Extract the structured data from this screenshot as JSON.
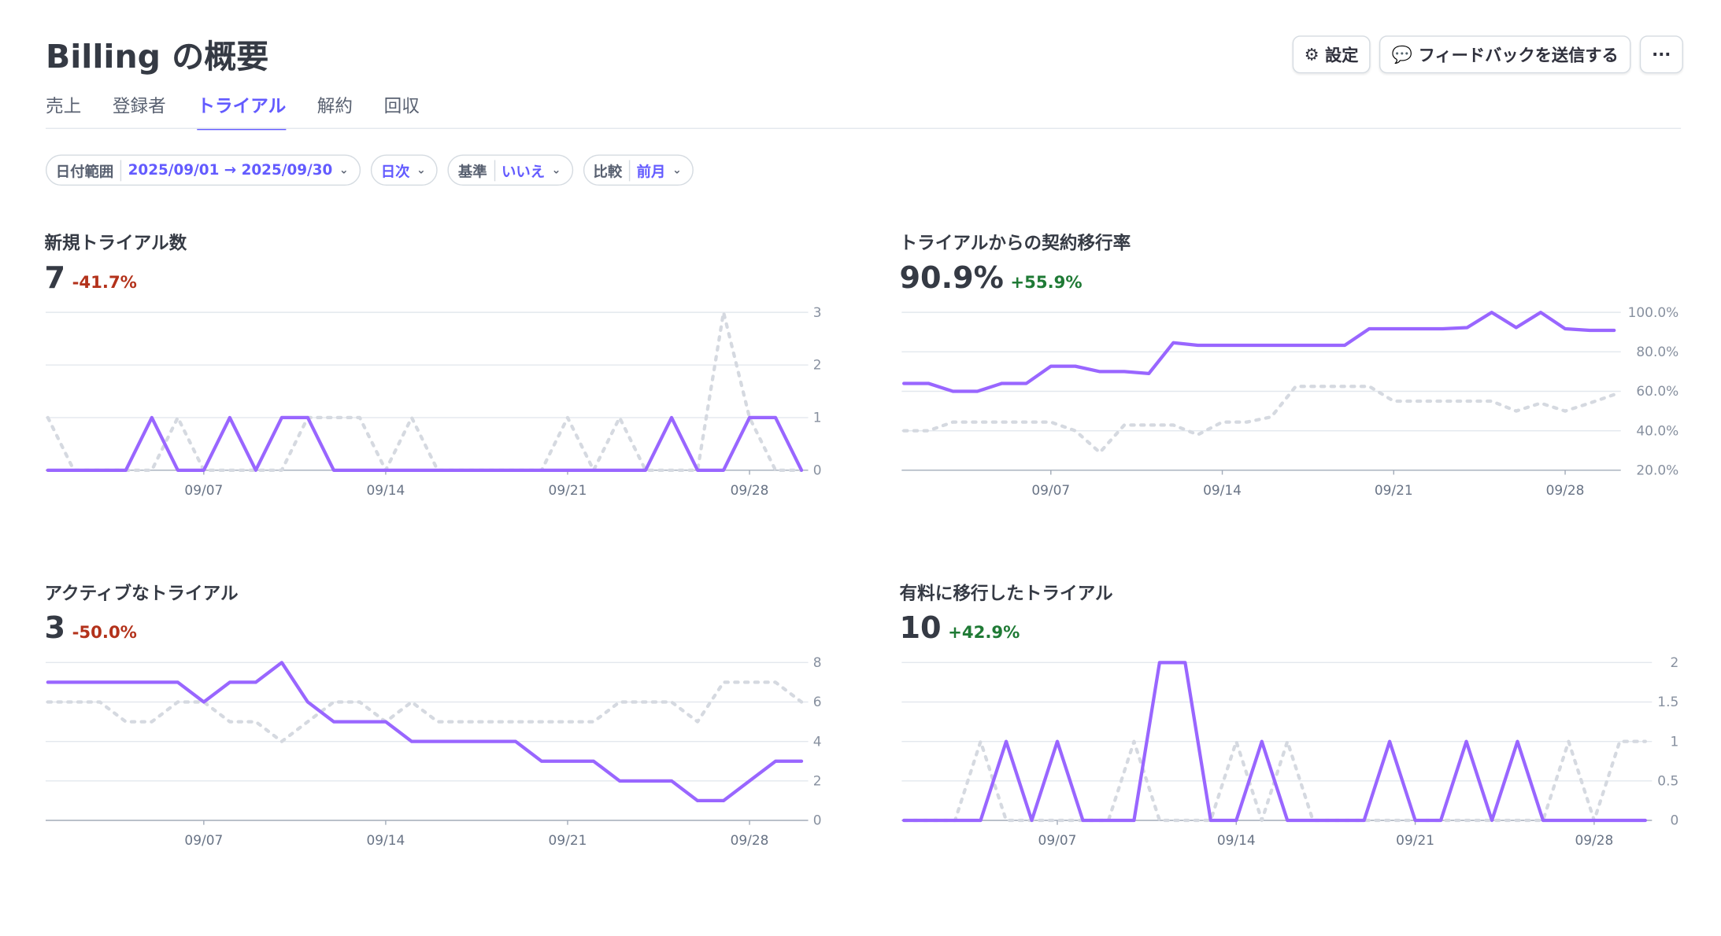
{
  "header": {
    "title": "Billing の概要",
    "buttons": [
      "設定",
      "フィードバックを送信する",
      "···"
    ]
  },
  "tabs": {
    "items": [
      "売上",
      "登録者",
      "トライアル",
      "解約",
      "回収"
    ],
    "active": 2
  },
  "filters": [
    {
      "label": "日付範囲",
      "value": "2025/09/01 → 2025/09/30"
    },
    {
      "value": "日次"
    },
    {
      "label": "基準",
      "value": "いいえ"
    },
    {
      "label": "比較",
      "value": "前月"
    }
  ],
  "chart_data": [
    {
      "type": "line",
      "title": "新規トライアル数",
      "headline": "7",
      "change": "-41.7%",
      "change_color": "#b3321b",
      "categories": [
        null,
        null,
        null,
        null,
        null,
        null,
        "09/07",
        null,
        null,
        null,
        null,
        null,
        null,
        "09/14",
        null,
        null,
        null,
        null,
        null,
        null,
        "09/21",
        null,
        null,
        null,
        null,
        null,
        null,
        "09/28",
        null,
        null
      ],
      "series": [
        {
          "color": "#9966ff",
          "style": "solid",
          "values": [
            0,
            0,
            0,
            0,
            1,
            0,
            0,
            1,
            0,
            1,
            1,
            0,
            0,
            0,
            0,
            0,
            0,
            0,
            0,
            0,
            0,
            0,
            0,
            0,
            1,
            0,
            0,
            1,
            1,
            0
          ]
        },
        {
          "color": "#d5d9e0",
          "style": "dotted",
          "values": [
            1,
            0,
            0,
            0,
            0,
            1,
            0,
            0,
            0,
            0,
            1,
            1,
            1,
            0,
            1,
            0,
            0,
            0,
            0,
            0,
            1,
            0,
            1,
            0,
            0,
            0,
            3,
            1,
            0,
            0
          ]
        }
      ],
      "ylim": [
        0,
        3
      ],
      "yticks": [
        0,
        1,
        2,
        3
      ],
      "grid": true
    },
    {
      "type": "line",
      "title": "トライアルからの契約移行率",
      "headline": "90.9%",
      "change": "+55.9%",
      "change_color": "#1f7a35",
      "categories": [
        null,
        null,
        null,
        null,
        null,
        null,
        "09/07",
        null,
        null,
        null,
        null,
        null,
        null,
        "09/14",
        null,
        null,
        null,
        null,
        null,
        null,
        "09/21",
        null,
        null,
        null,
        null,
        null,
        null,
        "09/28",
        null,
        null
      ],
      "series": [
        {
          "color": "#9966ff",
          "style": "solid",
          "values": [
            64,
            64,
            60,
            60,
            64,
            64,
            72.7,
            72.7,
            70,
            70,
            69,
            84.6,
            83.3,
            83.3,
            83.3,
            83.3,
            83.3,
            83.3,
            83.3,
            91.7,
            91.7,
            91.7,
            91.7,
            92.3,
            100,
            92.3,
            100,
            91.7,
            90.9,
            90.9
          ]
        },
        {
          "color": "#d5d9e0",
          "style": "dotted",
          "values": [
            40,
            40,
            44.4,
            44.4,
            44.4,
            44.4,
            44.4,
            40,
            29,
            42.9,
            42.9,
            42.9,
            38,
            44.4,
            44.4,
            47,
            62.5,
            62.5,
            62.5,
            62.5,
            55,
            55,
            55,
            55,
            55,
            50,
            54,
            50,
            54,
            58.3
          ]
        }
      ],
      "ylim": [
        20,
        100
      ],
      "yticks": [
        {
          "value": 20,
          "label": "20.0%"
        },
        {
          "value": 40,
          "label": "40.0%"
        },
        {
          "value": 60,
          "label": "60.0%"
        },
        {
          "value": 80,
          "label": "80.0%"
        },
        {
          "value": 100,
          "label": "100.0%"
        }
      ],
      "grid": true
    },
    {
      "type": "line",
      "title": "アクティブなトライアル",
      "headline": "3",
      "change": "-50.0%",
      "change_color": "#b3321b",
      "categories": [
        null,
        null,
        null,
        null,
        null,
        null,
        "09/07",
        null,
        null,
        null,
        null,
        null,
        null,
        "09/14",
        null,
        null,
        null,
        null,
        null,
        null,
        "09/21",
        null,
        null,
        null,
        null,
        null,
        null,
        "09/28",
        null,
        null
      ],
      "series": [
        {
          "color": "#9966ff",
          "style": "solid",
          "values": [
            7,
            7,
            7,
            7,
            7,
            7,
            6,
            7,
            7,
            8,
            6,
            5,
            5,
            5,
            4,
            4,
            4,
            4,
            4,
            3,
            3,
            3,
            2,
            2,
            2,
            1,
            1,
            2,
            3,
            3
          ]
        },
        {
          "color": "#d5d9e0",
          "style": "dotted",
          "values": [
            6,
            6,
            6,
            5,
            5,
            6,
            6,
            5,
            5,
            4,
            5,
            6,
            6,
            5,
            6,
            5,
            5,
            5,
            5,
            5,
            5,
            5,
            6,
            6,
            6,
            5,
            7,
            7,
            7,
            6
          ]
        }
      ],
      "ylim": [
        0,
        8
      ],
      "yticks": [
        0,
        2,
        4,
        6,
        8
      ],
      "grid": true
    },
    {
      "type": "line",
      "title": "有料に移行したトライアル",
      "headline": "10",
      "change": "+42.9%",
      "change_color": "#1f7a35",
      "categories": [
        null,
        null,
        null,
        null,
        null,
        null,
        "09/07",
        null,
        null,
        null,
        null,
        null,
        null,
        "09/14",
        null,
        null,
        null,
        null,
        null,
        null,
        "09/21",
        null,
        null,
        null,
        null,
        null,
        null,
        "09/28",
        null,
        null
      ],
      "series": [
        {
          "color": "#9966ff",
          "style": "solid",
          "values": [
            0,
            0,
            0,
            0,
            1,
            0,
            1,
            0,
            0,
            0,
            2,
            2,
            0,
            0,
            1,
            0,
            0,
            0,
            0,
            1,
            0,
            0,
            1,
            0,
            1,
            0,
            0,
            0,
            0,
            0
          ]
        },
        {
          "color": "#d5d9e0",
          "style": "dotted",
          "values": [
            0,
            0,
            0,
            1,
            0,
            0,
            0,
            0,
            0,
            1,
            0,
            0,
            0,
            1,
            0,
            1,
            0,
            0,
            0,
            0,
            0,
            0,
            0,
            0,
            0,
            0,
            1,
            0,
            1,
            1
          ]
        }
      ],
      "ylim": [
        0,
        2
      ],
      "yticks": [
        0,
        0.5,
        1,
        1.5,
        2
      ],
      "grid": true
    }
  ]
}
